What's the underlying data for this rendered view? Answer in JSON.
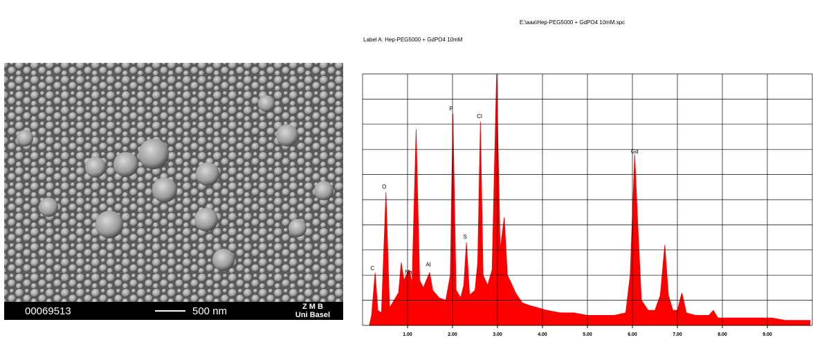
{
  "image": {
    "id": "00069513",
    "scale_label": "500 nm",
    "institute_line1": "Z M B",
    "institute_line2": "Uni Basel"
  },
  "chart_data": {
    "type": "area",
    "title": "E:\\aaa\\Hep-PEG5000 + GdPO4 10mM.spc",
    "subtitle": "Label A: Hep-PEG5000 + GdPO4 10mM",
    "color": "#ff0000",
    "grid": true,
    "x": [
      0.15,
      0.2,
      0.28,
      0.34,
      0.42,
      0.52,
      0.6,
      0.7,
      0.8,
      0.86,
      0.92,
      1.0,
      1.04,
      1.1,
      1.19,
      1.27,
      1.35,
      1.42,
      1.49,
      1.56,
      1.7,
      1.85,
      1.95,
      2.01,
      2.08,
      2.18,
      2.25,
      2.31,
      2.38,
      2.5,
      2.56,
      2.62,
      2.68,
      2.78,
      2.88,
      2.98,
      3.06,
      3.15,
      3.22,
      3.3,
      3.4,
      3.55,
      3.7,
      3.9,
      4.1,
      4.4,
      4.7,
      5.0,
      5.3,
      5.6,
      5.85,
      5.95,
      6.05,
      6.12,
      6.2,
      6.35,
      6.5,
      6.62,
      6.72,
      6.8,
      6.9,
      7.0,
      7.1,
      7.2,
      7.4,
      7.7,
      7.8,
      7.9,
      8.2,
      8.5,
      8.8,
      9.1,
      9.4,
      9.7,
      9.95
    ],
    "values": [
      0,
      4,
      21,
      6,
      5,
      53,
      7,
      10,
      13,
      25,
      18,
      21,
      22,
      17,
      78,
      18,
      15,
      18,
      21,
      14,
      11,
      10,
      20,
      84,
      14,
      11,
      16,
      33,
      12,
      14,
      25,
      81,
      20,
      16,
      22,
      100,
      30,
      43,
      20,
      17,
      13,
      9,
      8,
      7,
      6,
      5,
      5,
      4,
      4,
      4,
      5,
      20,
      68,
      40,
      10,
      6,
      6,
      12,
      32,
      12,
      6,
      6,
      13,
      5,
      4,
      4,
      6,
      3,
      3,
      3,
      3,
      3,
      2,
      2,
      2
    ],
    "xlim": [
      0,
      10
    ],
    "ylim": [
      0,
      100
    ],
    "xticks": [
      {
        "value": 1,
        "label": "1.00"
      },
      {
        "value": 2,
        "label": "2.00"
      },
      {
        "value": 3,
        "label": "3.00"
      },
      {
        "value": 4,
        "label": "4.00"
      },
      {
        "value": 5,
        "label": "5.00"
      },
      {
        "value": 6,
        "label": "6.00"
      },
      {
        "value": 7,
        "label": "7.00"
      },
      {
        "value": 8,
        "label": "8.00"
      },
      {
        "value": 9,
        "label": "9.00"
      }
    ],
    "xgrid": [
      0,
      1,
      2,
      3,
      4,
      5,
      6,
      7,
      8,
      9,
      10
    ],
    "yticks": [
      0,
      10,
      20,
      30,
      40,
      50,
      60,
      70,
      80,
      90,
      100
    ],
    "annotations": [
      {
        "text": "C",
        "x": 0.22,
        "y": 22.5
      },
      {
        "text": "O",
        "x": 0.48,
        "y": 55
      },
      {
        "text": "Na",
        "x": 1.02,
        "y": 21
      },
      {
        "text": "Al",
        "x": 1.46,
        "y": 24
      },
      {
        "text": "P",
        "x": 1.97,
        "y": 86
      },
      {
        "text": "S",
        "x": 2.28,
        "y": 35
      },
      {
        "text": "Cl",
        "x": 2.6,
        "y": 83
      },
      {
        "text": "Gd",
        "x": 6.05,
        "y": 69
      }
    ]
  }
}
